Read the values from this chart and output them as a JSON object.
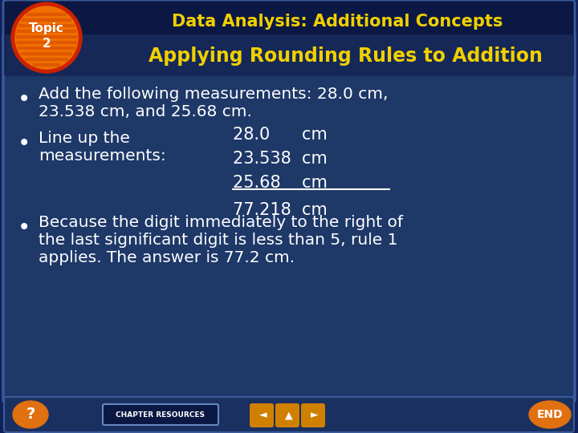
{
  "title": "Data Analysis: Additional Concepts",
  "subtitle": "Applying Rounding Rules to Addition",
  "topic_label": "Topic\n2",
  "bullet1_line1": "Add the following measurements: 28.0 cm,",
  "bullet1_line2": "23.538 cm, and 25.68 cm.",
  "bullet2_left_line1": "Line up the",
  "bullet2_left_line2": "measurements:",
  "meas1": "28.0      cm",
  "meas2": "23.538  cm",
  "meas3": "25.68    cm",
  "meas4": "77.218  cm",
  "bullet3_line1": "Because the digit immediately to the right of",
  "bullet3_line2": "the last significant digit is less than 5, rule 1",
  "bullet3_line3": "applies. The answer is 77.2 cm.",
  "bg_outer": "#10205a",
  "bg_title_bar": "#10205a",
  "bg_main": "#1e3868",
  "bg_subtitle_bar": "#1a3060",
  "title_color": "#f0d000",
  "subtitle_color": "#f0d000",
  "topic_circle_outer": "#cc2200",
  "topic_circle_inner": "#f07000",
  "topic_stripe_color": "#e05800",
  "text_color": "#ffffff",
  "border_color": "#3a5a99",
  "bottom_bar_color": "#1a3060",
  "nav_color": "#e07010",
  "ch_res_bg": "#1a3060",
  "nav_arrows_color": "#d08000"
}
